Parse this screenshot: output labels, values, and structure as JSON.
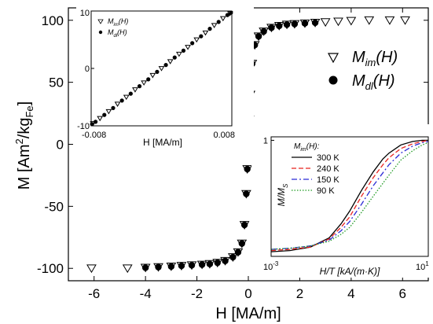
{
  "chart_data": [
    {
      "type": "scatter",
      "title": "",
      "xlabel": "H [MA/m]",
      "ylabel_main": "M [Am",
      "ylabel_sup": "2",
      "ylabel_mid": "/kg",
      "ylabel_sub": "Fe",
      "ylabel_end": "]",
      "xlim": [
        -7,
        7
      ],
      "ylim": [
        -110,
        110
      ],
      "xticks": [
        -6,
        -4,
        -2,
        0,
        2,
        4,
        6
      ],
      "yticks": [
        -100,
        -50,
        0,
        50,
        100
      ],
      "legend_position": "right",
      "series": [
        {
          "name": "M",
          "name_sub": "im",
          "name_end": "(H)",
          "marker": "open-triangle-down",
          "x": [
            -6.1,
            -4.7,
            -4.0,
            -3.5,
            -3.0,
            -2.6,
            -2.2,
            -1.8,
            -1.5,
            -1.2,
            -0.9,
            -0.6,
            -0.4,
            -0.25,
            -0.15,
            -0.08,
            -0.04,
            0.0,
            0.04,
            0.08,
            0.15,
            0.25,
            0.4,
            0.6,
            0.9,
            1.2,
            1.5,
            1.8,
            2.2,
            2.6,
            3.0,
            3.5,
            4.0,
            4.7,
            5.5,
            6.1
          ],
          "y": [
            -100,
            -100,
            -99.5,
            -99,
            -98.5,
            -98,
            -97.5,
            -97,
            -96.5,
            -95.5,
            -94,
            -91,
            -87,
            -80,
            -65,
            -40,
            -20,
            0,
            20,
            40,
            65,
            80,
            87,
            91,
            94,
            95.5,
            96.5,
            97,
            97.5,
            98,
            98.5,
            99,
            99.5,
            100,
            100,
            100
          ]
        },
        {
          "name": "M",
          "name_sub": "dl",
          "name_end": "(H)",
          "marker": "filled-circle",
          "x": [
            -4.0,
            -3.5,
            -3.0,
            -2.6,
            -2.2,
            -1.8,
            -1.5,
            -1.2,
            -0.9,
            -0.6,
            -0.4,
            -0.25,
            -0.15,
            -0.08,
            -0.04,
            0.0,
            0.04,
            0.08,
            0.15,
            0.25,
            0.4,
            0.6,
            0.9,
            1.2,
            1.5,
            1.8,
            2.2,
            2.6
          ],
          "y": [
            -99.5,
            -99,
            -98.5,
            -98,
            -97.5,
            -97,
            -96.5,
            -95.5,
            -94,
            -91,
            -87,
            -80,
            -65,
            -40,
            -20,
            0,
            20,
            40,
            65,
            80,
            87,
            91,
            94,
            95.5,
            96.5,
            97,
            97.5,
            98
          ]
        }
      ]
    },
    {
      "type": "scatter",
      "title": "",
      "xlabel": "H [MA/m]",
      "xtick_labels": [
        "-0.008",
        "0.008"
      ],
      "ytick_labels": [
        "10",
        "0",
        "-10"
      ],
      "xlim": [
        -0.008,
        0.008
      ],
      "ylim": [
        -10,
        10
      ],
      "legend_position": "top-left",
      "series": [
        {
          "name": "M",
          "name_sub": "im",
          "name_end": "(H)",
          "marker": "open-triangle-down",
          "x": [
            -0.0078,
            -0.007,
            -0.006,
            -0.005,
            -0.004,
            -0.003,
            -0.002,
            -0.001,
            0.0,
            0.001,
            0.002,
            0.003,
            0.004,
            0.005,
            0.006,
            0.007,
            0.0078
          ],
          "y": [
            -9.6,
            -8.7,
            -7.5,
            -6.2,
            -5.0,
            -3.7,
            -2.5,
            -1.2,
            0.0,
            1.2,
            2.5,
            3.7,
            5.0,
            6.2,
            7.5,
            8.7,
            9.6
          ]
        },
        {
          "name": "M",
          "name_sub": "dl",
          "name_end": "(H)",
          "marker": "filled-circle",
          "x": [
            -0.0079,
            -0.0075,
            -0.0065,
            -0.0055,
            -0.0045,
            -0.0035,
            -0.0025,
            -0.0015,
            -0.0005,
            0.0005,
            0.0015,
            0.0025,
            0.0035,
            0.0045,
            0.0055,
            0.0065,
            0.0075,
            0.0079
          ],
          "y": [
            -9.7,
            -9.3,
            -8.1,
            -6.9,
            -5.6,
            -4.4,
            -3.1,
            -1.9,
            -0.6,
            0.6,
            1.9,
            3.1,
            4.4,
            5.6,
            6.9,
            8.1,
            9.3,
            9.7
          ]
        }
      ]
    },
    {
      "type": "line",
      "title": "",
      "xlabel": "H/T [kA/(m·K)]",
      "ylabel_main": "M/M",
      "ylabel_sub": "S",
      "xscale": "log",
      "xlim": [
        0.001,
        10
      ],
      "ylim": [
        0,
        1.03
      ],
      "xtick_labels": [
        "10",
        "10"
      ],
      "xtick_exps": [
        "-3",
        "1"
      ],
      "ytick_labels": [
        "1"
      ],
      "legend_title_main": "M",
      "legend_title_sub": "im",
      "legend_title_end": "(H):",
      "legend_position": "top-left",
      "series": [
        {
          "name": "300 K",
          "color": "#000000",
          "dash": "solid",
          "x": [
            0.001,
            0.003,
            0.01,
            0.03,
            0.06,
            0.1,
            0.2,
            0.4,
            0.7,
            1.0,
            2.0,
            4.0,
            7.0,
            10.0
          ],
          "y": [
            0.04,
            0.05,
            0.08,
            0.16,
            0.28,
            0.39,
            0.57,
            0.73,
            0.84,
            0.89,
            0.96,
            0.99,
            1.0,
            1.0
          ]
        },
        {
          "name": "240 K",
          "color": "#e8231f",
          "dash": "dashed",
          "x": [
            0.001,
            0.003,
            0.01,
            0.03,
            0.06,
            0.1,
            0.2,
            0.4,
            0.7,
            1.0,
            2.0,
            4.0,
            7.0,
            10.0
          ],
          "y": [
            0.05,
            0.06,
            0.08,
            0.15,
            0.25,
            0.34,
            0.52,
            0.68,
            0.79,
            0.85,
            0.93,
            0.97,
            0.99,
            1.0
          ]
        },
        {
          "name": "150 K",
          "color": "#2b2bd6",
          "dash": "dashdot",
          "x": [
            0.001,
            0.003,
            0.01,
            0.03,
            0.06,
            0.1,
            0.2,
            0.4,
            0.7,
            1.0,
            2.0,
            4.0,
            7.0,
            10.0
          ],
          "y": [
            0.06,
            0.07,
            0.09,
            0.14,
            0.22,
            0.3,
            0.45,
            0.61,
            0.72,
            0.79,
            0.89,
            0.95,
            0.98,
            0.99
          ]
        },
        {
          "name": "90 K",
          "color": "#1f9a22",
          "dash": "dotted",
          "x": [
            0.001,
            0.003,
            0.01,
            0.03,
            0.06,
            0.1,
            0.2,
            0.4,
            0.7,
            1.0,
            2.0,
            4.0,
            7.0,
            10.0
          ],
          "y": [
            0.06,
            0.07,
            0.09,
            0.13,
            0.19,
            0.25,
            0.38,
            0.52,
            0.63,
            0.7,
            0.83,
            0.91,
            0.96,
            0.98
          ]
        }
      ]
    }
  ]
}
